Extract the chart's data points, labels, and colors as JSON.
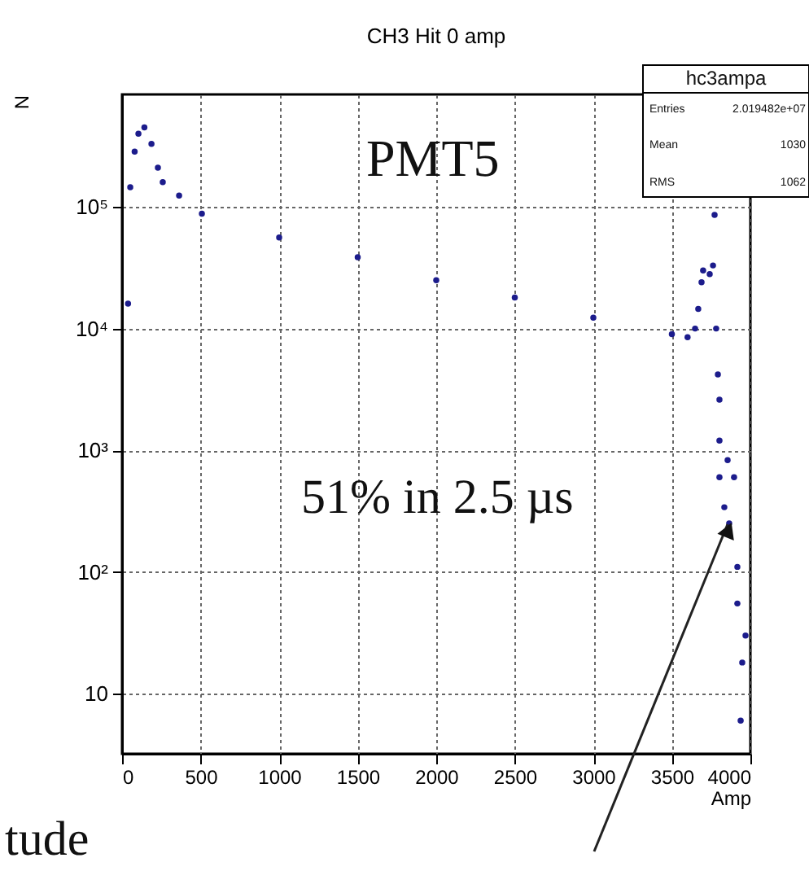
{
  "chart_data": {
    "type": "scatter",
    "title": "CH3 Hit 0 amp",
    "xlabel": "Amp",
    "ylabel": "N",
    "x": [
      38,
      52,
      80,
      104,
      142,
      187,
      228,
      259,
      363,
      508,
      1000,
      1500,
      2000,
      2500,
      3000,
      3500,
      3600,
      3648,
      3668,
      3689,
      3699,
      3741,
      3762,
      3772,
      3782,
      3793,
      3803,
      3803,
      3803,
      3855,
      3896,
      3834,
      3865,
      3917,
      3917,
      3969,
      3948,
      3938
    ],
    "series": [
      {
        "color": "#1c1c8c",
        "values": [
          16000,
          145000,
          285000,
          400000,
          450000,
          330000,
          210000,
          160000,
          124000,
          88000,
          56000,
          38500,
          25000,
          18000,
          12300,
          9000,
          8500,
          10000,
          14500,
          24000,
          30000,
          28000,
          33000,
          86000,
          10000,
          4200,
          2600,
          1200,
          600,
          830,
          600,
          340,
          250,
          110,
          55,
          30,
          18,
          6
        ]
      }
    ],
    "xlim": [
      0,
      4000
    ],
    "xticks": [
      0,
      500,
      1000,
      1500,
      2000,
      2500,
      3000,
      3500,
      4000
    ],
    "ylim": [
      3.2,
      840000
    ],
    "log": true,
    "yticks": [
      {
        "value": 10,
        "label": "10"
      },
      {
        "value": 100,
        "label": "10²"
      },
      {
        "value": 1000,
        "label": "10³"
      },
      {
        "value": 10000,
        "label": "10⁴"
      },
      {
        "value": 100000,
        "label": "10⁵"
      }
    ],
    "grid": true,
    "marker": "circle",
    "annotations": [
      "PMT5",
      "51% in 2.5 µs",
      "hc3ampa",
      "Entries",
      "2.019482e+07",
      "Mean",
      "1030",
      "RMS",
      "1062",
      "tude"
    ]
  }
}
